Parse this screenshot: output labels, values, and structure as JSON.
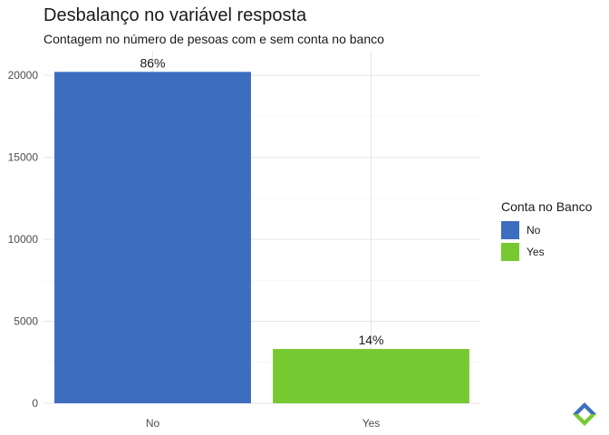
{
  "chart_data": {
    "type": "bar",
    "title": "Desbalanço no variável resposta",
    "subtitle": "Contagem no número de pesoas com e sem conta no banco",
    "categories": [
      "No",
      "Yes"
    ],
    "values": [
      20212,
      3312
    ],
    "data_labels": [
      "86%",
      "14%"
    ],
    "colors": [
      "#3D6DBE",
      "#77C932"
    ],
    "ylim": [
      0,
      21500
    ],
    "yticks": [
      0,
      5000,
      10000,
      15000,
      20000
    ],
    "xlabel": "",
    "ylabel": "",
    "grid": true,
    "legend": {
      "title": "Conta no Banco",
      "placement": "right",
      "entries": [
        "No",
        "Yes"
      ]
    }
  },
  "logo": {
    "icon": "diamond-logo-icon",
    "colors": [
      "#3D6DBE",
      "#77C932"
    ]
  }
}
